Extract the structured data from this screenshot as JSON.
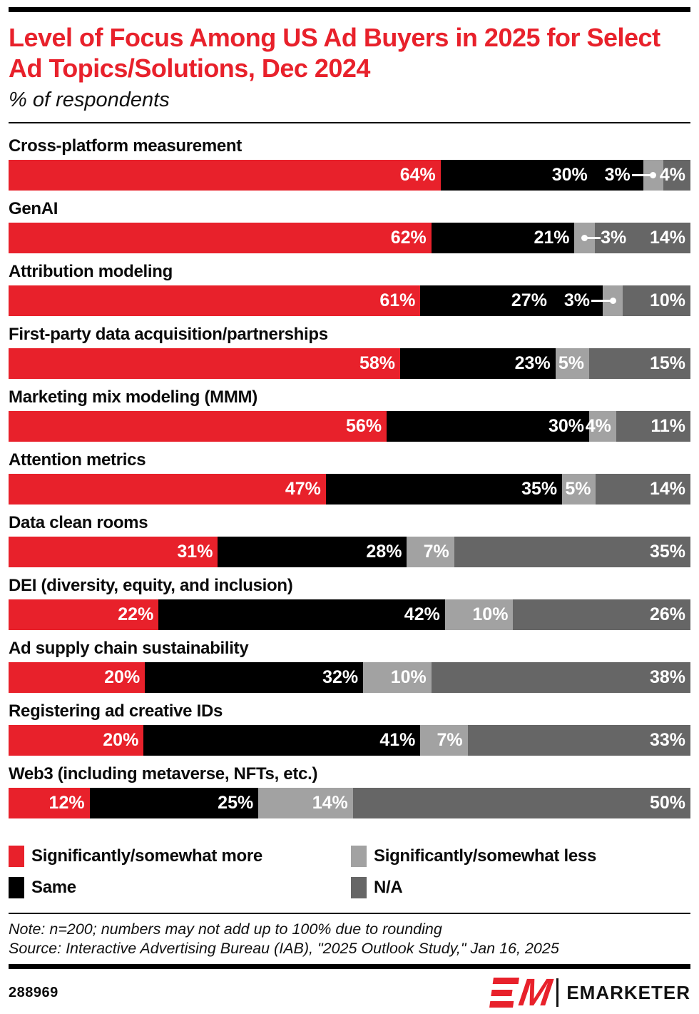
{
  "header": {
    "title": "Level of Focus Among US Ad Buyers in 2025 for Select Ad Topics/Solutions, Dec 2024",
    "subtitle": "% of respondents"
  },
  "colors": {
    "red": "#E8212B",
    "black": "#000000",
    "light_gray": "#A2A2A2",
    "dark_gray": "#666666"
  },
  "chart_data": {
    "type": "bar",
    "orientation": "horizontal-stacked",
    "unit": "%",
    "value_label_format": "{v}%",
    "categories": [
      "Cross-platform measurement",
      "GenAI",
      "Attribution modeling",
      "First-party data acquisition/partnerships",
      "Marketing mix modeling (MMM)",
      "Attention metrics",
      "Data clean rooms",
      "DEI (diversity, equity, and inclusion)",
      "Ad supply chain sustainability",
      "Registering ad creative IDs",
      "Web3 (including metaverse, NFTs, etc.)"
    ],
    "series": [
      {
        "name": "Significantly/somewhat more",
        "color_key": "red",
        "values": [
          64,
          62,
          61,
          58,
          56,
          47,
          31,
          22,
          20,
          20,
          12
        ]
      },
      {
        "name": "Same",
        "color_key": "black",
        "values": [
          30,
          21,
          27,
          23,
          30,
          35,
          28,
          42,
          32,
          41,
          25
        ]
      },
      {
        "name": "Significantly/somewhat less",
        "color_key": "light_gray",
        "values": [
          3,
          3,
          3,
          5,
          4,
          5,
          7,
          10,
          10,
          7,
          14
        ]
      },
      {
        "name": "N/A",
        "color_key": "dark_gray",
        "values": [
          4,
          14,
          10,
          15,
          11,
          14,
          35,
          26,
          38,
          33,
          50
        ]
      }
    ],
    "callouts": [
      {
        "row": 0,
        "series": 2,
        "side": "left"
      },
      {
        "row": 1,
        "series": 2,
        "side": "right"
      },
      {
        "row": 2,
        "series": 2,
        "side": "left"
      }
    ]
  },
  "legend": {
    "items": [
      {
        "label": "Significantly/somewhat more",
        "color_key": "red"
      },
      {
        "label": "Significantly/somewhat less",
        "color_key": "light_gray"
      },
      {
        "label": "Same",
        "color_key": "black"
      },
      {
        "label": "N/A",
        "color_key": "dark_gray"
      }
    ]
  },
  "notes": {
    "note": "Note: n=200; numbers may not add up to 100% due to rounding",
    "source": "Source: Interactive Advertising Bureau (IAB), \"2025 Outlook Study,\" Jan 16, 2025"
  },
  "footer": {
    "chart_id": "288969",
    "logo_mark": "M",
    "brand": "EMARKETER"
  }
}
